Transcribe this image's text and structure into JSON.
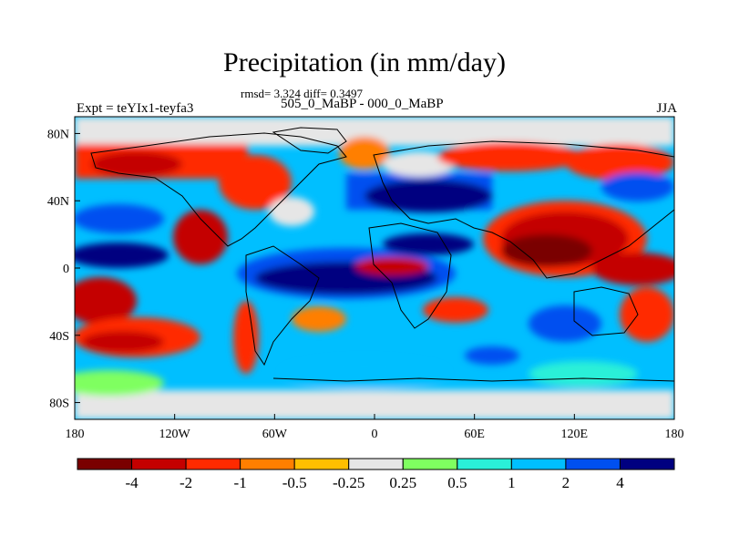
{
  "title": "Precipitation (in mm/day)",
  "stats": "rmsd= 3.324 diff= 0.3497",
  "comparison": "505_0_MaBP - 000_0_MaBP",
  "experiment": "Expt = teYIx1-teyfa3",
  "season": "JJA",
  "lat_ticks": [
    "80N",
    "40N",
    "0",
    "40S",
    "80S"
  ],
  "lon_ticks": [
    "180",
    "120W",
    "60W",
    "0",
    "60E",
    "120E",
    "180"
  ],
  "colorbar": {
    "colors": [
      "#7a0000",
      "#c40000",
      "#ff2a00",
      "#ff7f00",
      "#ffbf00",
      "#e6e6e6",
      "#7fff60",
      "#2af0d8",
      "#00bfff",
      "#0050f0",
      "#000080"
    ],
    "labels": [
      "-4",
      "-2",
      "-1",
      "-0.5",
      "-0.25",
      "0.25",
      "0.5",
      "1",
      "2",
      "4"
    ]
  }
}
